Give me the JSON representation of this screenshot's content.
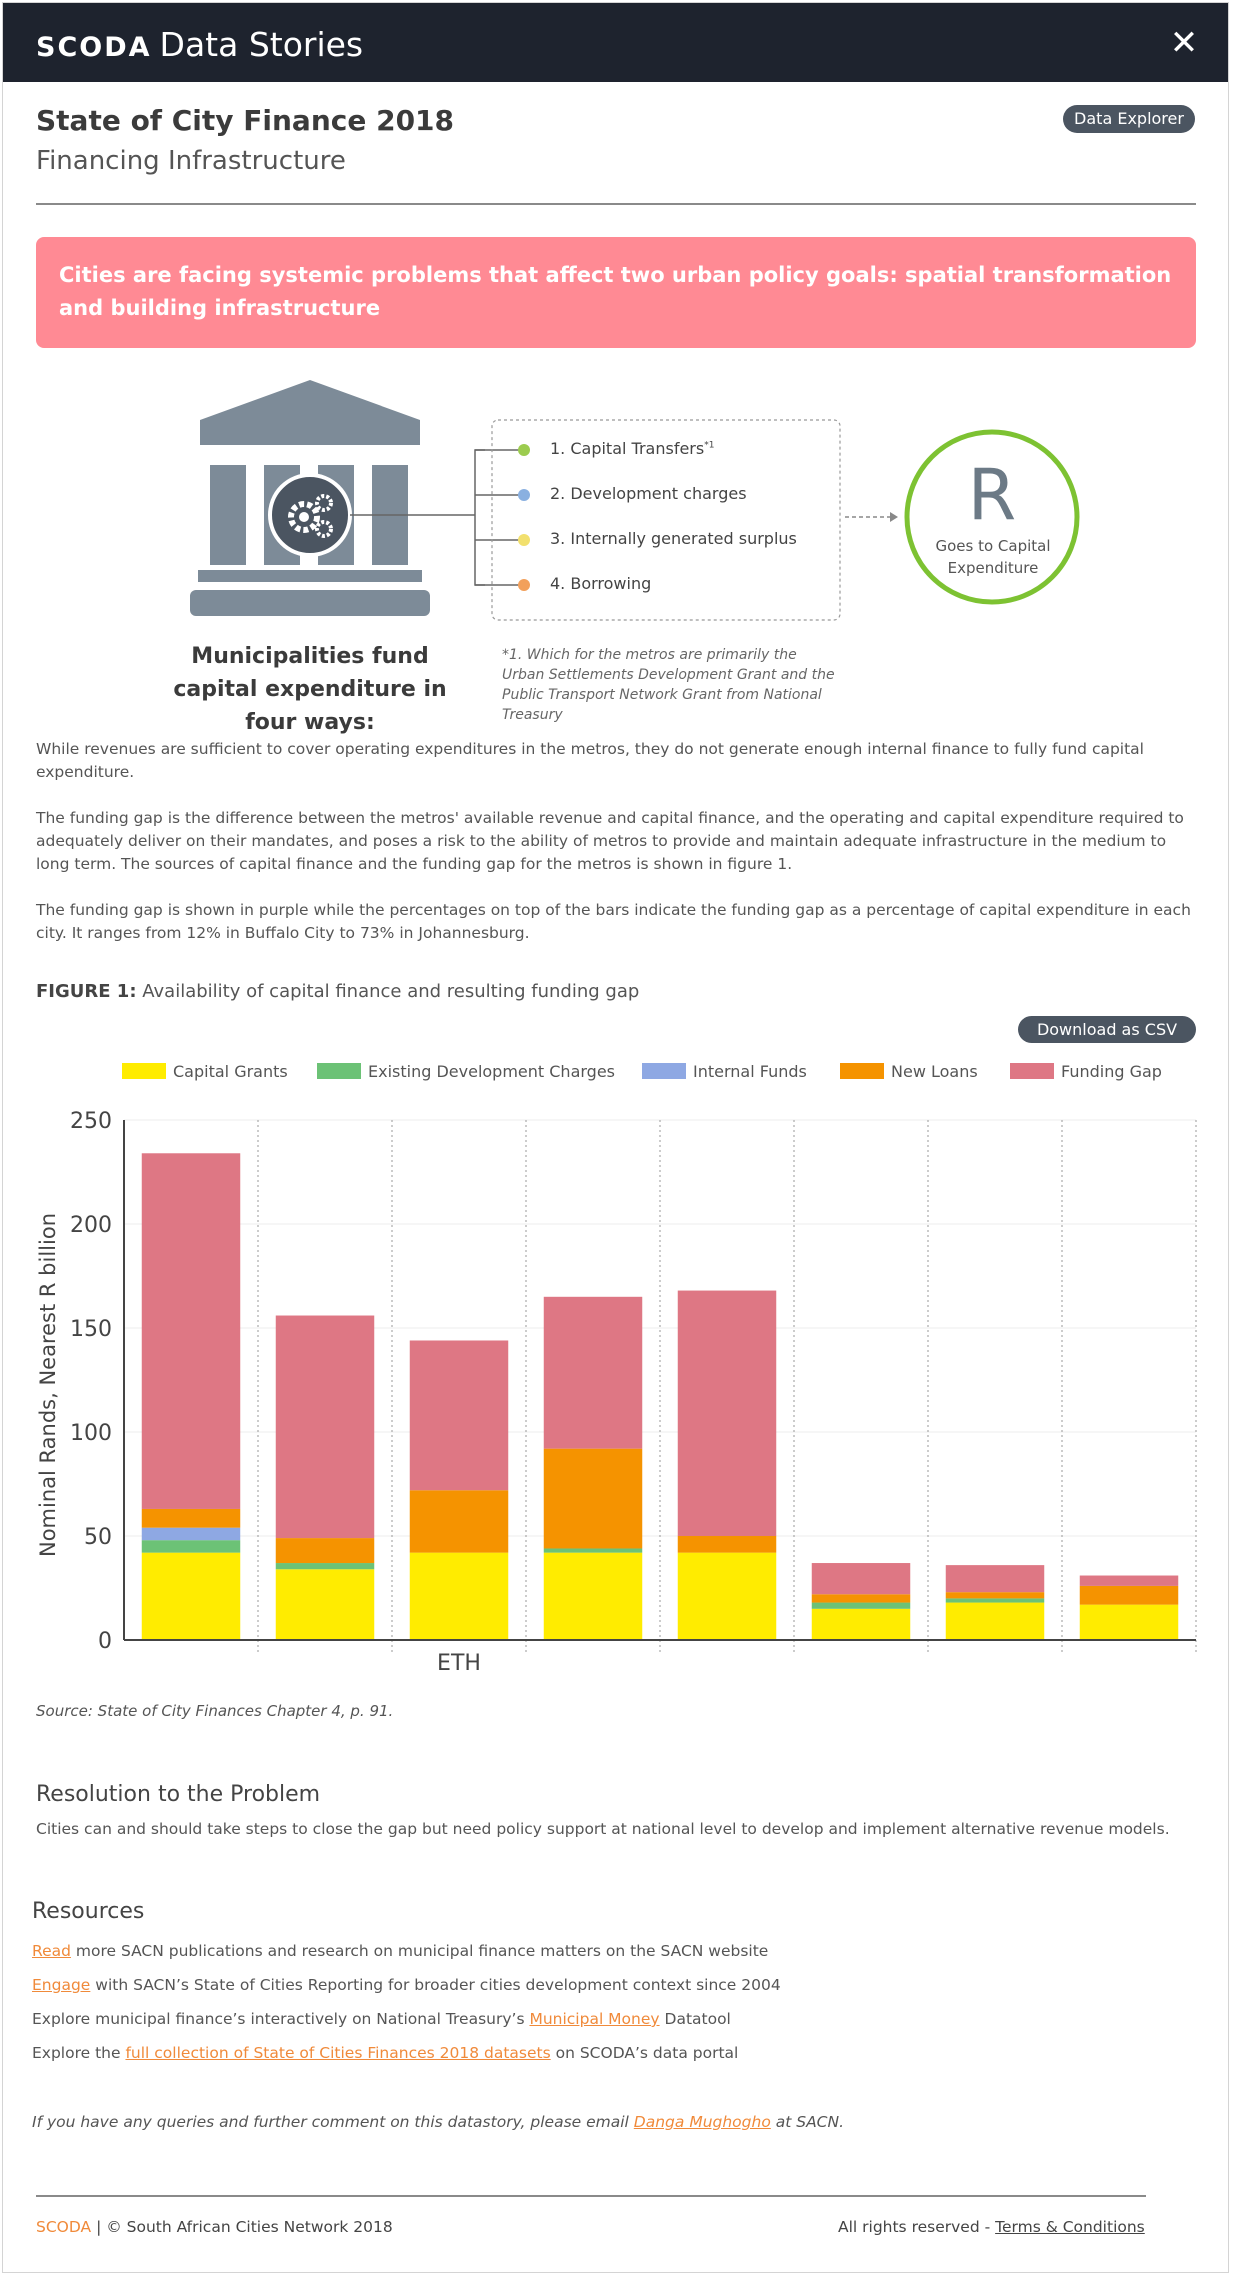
{
  "app": {
    "brand_logo": "SCODA",
    "brand_name": "Data Stories"
  },
  "header": {
    "title": "State of City Finance 2018",
    "subtitle": "Financing Infrastructure",
    "explorer_button": "Data Explorer"
  },
  "banner": {
    "text": "Cities are facing systemic problems that affect two urban policy goals: spatial transformation and building infrastructure"
  },
  "infographic": {
    "items": [
      {
        "label": "1. Capital Transfers",
        "note": "*1",
        "dot_color": "#9ccc4f"
      },
      {
        "label": "2. Development charges",
        "dot_color": "#8ab0e0"
      },
      {
        "label": "3. Internally generated surplus",
        "dot_color": "#f2e06e"
      },
      {
        "label": "4. Borrowing",
        "dot_color": "#f2a05b"
      }
    ],
    "caption": "Municipalities fund capital expenditure in four ways:",
    "footnote": "*1. Which for the metros are primarily the Urban Settlements Development Grant and the Public Transport Network Grant from National Treasury",
    "circle_letter": "R",
    "circle_text": "Goes to Capital Expenditure",
    "circle_color": "#7dc232"
  },
  "paragraphs": [
    "While revenues are sufficient to cover operating expenditures in the metros, they do not generate enough internal finance to fully fund capital expenditure.",
    "The funding gap is the difference between the metros' available revenue and capital finance, and the operating and capital expenditure required to adequately deliver on their mandates, and poses a risk to the ability of metros to provide and maintain adequate infrastructure in the medium to long term. The sources of capital finance and the funding gap for the metros is shown in figure 1.",
    "The funding gap is shown in purple while the percentages on top of the bars indicate the funding gap as a percentage of capital expenditure in each city. It ranges from 12% in Buffalo City to 73% in Johannesburg."
  ],
  "figure": {
    "label": "FIGURE 1:",
    "title": "Availability of capital finance and resulting funding gap",
    "csv_button": "Download as CSV",
    "source": "Source: State of City Finances Chapter 4, p. 91."
  },
  "chart_data": {
    "type": "bar",
    "stacked": true,
    "categories": [
      "",
      "",
      "ETH",
      "",
      "",
      "",
      "",
      ""
    ],
    "series": [
      {
        "name": "Capital Grants",
        "color": "#ffec00",
        "values": [
          42,
          34,
          42,
          42,
          42,
          15,
          18,
          17
        ]
      },
      {
        "name": "Existing Development Charges",
        "color": "#6cc276",
        "values": [
          6,
          3,
          0,
          2,
          0,
          3,
          2,
          0
        ]
      },
      {
        "name": "Internal Funds",
        "color": "#8ea8e3",
        "values": [
          6,
          0,
          0,
          0,
          0,
          0,
          0,
          0
        ]
      },
      {
        "name": "New Loans",
        "color": "#f59300",
        "values": [
          9,
          12,
          30,
          48,
          8,
          4,
          3,
          9
        ]
      },
      {
        "name": "Funding Gap",
        "color": "#de7784",
        "values": [
          171,
          107,
          72,
          73,
          118,
          15,
          13,
          5
        ]
      }
    ],
    "xlabel": "",
    "ylabel": "Nominal Rands, Nearest R billion",
    "ylim": [
      0,
      250
    ],
    "yticks": [
      "0",
      "50",
      "100",
      "150",
      "200",
      "250"
    ],
    "grid": true,
    "legend_position": "top"
  },
  "resolution": {
    "heading": "Resolution to the Problem",
    "text": "Cities can and should take steps to close the gap but need policy support at national level to develop and implement alternative revenue models."
  },
  "resources": {
    "heading": "Resources",
    "lines": [
      {
        "link": "Read",
        "after": " more SACN publications and research  on municipal finance matters on the SACN website"
      },
      {
        "link": "Engage",
        "after": " with SACN’s State of Cities Reporting for broader cities development context since 2004"
      },
      {
        "before": "Explore municipal finance’s interactively on National Treasury’s ",
        "link": "Municipal Money",
        "after": " Datatool"
      },
      {
        "before": "Explore the ",
        "link": "full collection of State of Cities Finances 2018 datasets",
        "after": " on SCODA’s data portal"
      }
    ]
  },
  "query": {
    "before": "If you have any queries and further comment on this datastory, please email ",
    "link": "Danga Mughogho",
    "after": " at SACN."
  },
  "footer": {
    "brand": "SCODA",
    "copyright": " | © South African Cities Network 2018",
    "rights": "All rights reserved - ",
    "terms": "Terms & Conditions"
  }
}
